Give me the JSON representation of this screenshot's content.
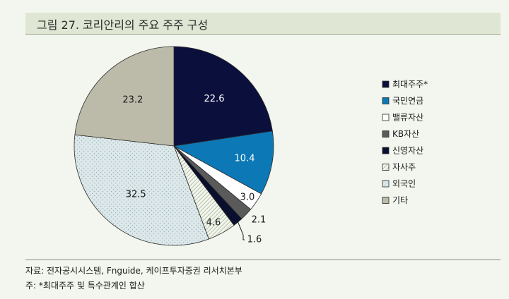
{
  "title": "그림 27.  코리안리의 주요 주주 구성",
  "chart_data": {
    "type": "pie",
    "slices": [
      {
        "label": "최대주주*",
        "value": 22.6,
        "value_label": "22.6",
        "color": "#0b0f3c",
        "pattern": "solid",
        "label_color": "#ffffff"
      },
      {
        "label": "국민연금",
        "value": 10.4,
        "value_label": "10.4",
        "color": "#0c78b5",
        "pattern": "solid",
        "label_color": "#ffffff"
      },
      {
        "label": "밸류자산",
        "value": 3.0,
        "value_label": "3.0",
        "color": "#ffffff",
        "pattern": "solid",
        "label_color": "#1a1a1a"
      },
      {
        "label": "KB자산",
        "value": 2.1,
        "value_label": "2.1",
        "color": "#5a5a5a",
        "pattern": "solid",
        "label_color": "#1a1a1a"
      },
      {
        "label": "신영자산",
        "value": 1.6,
        "value_label": "1.6",
        "color": "#0b0f2e",
        "pattern": "solid",
        "label_color": "#1a1a1a"
      },
      {
        "label": "자사주",
        "value": 4.6,
        "value_label": "4.6",
        "color": "#f2f6ee",
        "pattern": "hatch",
        "label_color": "#1a1a1a"
      },
      {
        "label": "외국인",
        "value": 32.5,
        "value_label": "32.5",
        "color": "#dde8ea",
        "pattern": "dots",
        "label_color": "#1a1a1a"
      },
      {
        "label": "기타",
        "value": 23.2,
        "value_label": "23.2",
        "color": "#bcbaa9",
        "pattern": "solid",
        "label_color": "#1a1a1a"
      }
    ]
  },
  "notes": {
    "source": "자료: 전자공시시스템, Fnguide, 케이프투자증권 리서치본부",
    "footnote": "주: *최대주주 및 특수관계인 합산"
  }
}
